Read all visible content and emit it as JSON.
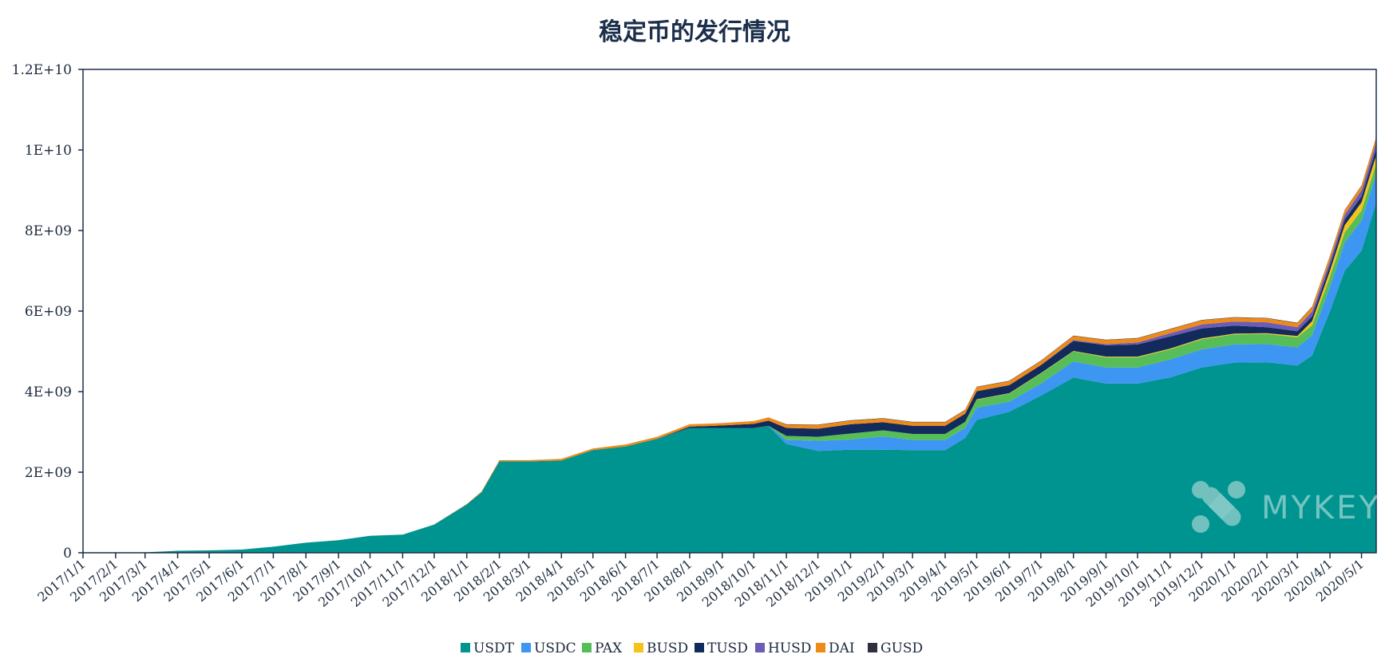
{
  "chart_data": {
    "type": "area",
    "stacked": true,
    "title": "稳定币的发行情况",
    "xlabel": "",
    "ylabel": "",
    "ylim": [
      0,
      12000000000
    ],
    "y_ticks": [
      "0",
      "2E+09",
      "4E+09",
      "6E+09",
      "8E+09",
      "1E+10",
      "1.2E+10"
    ],
    "x_ticks": [
      "2017/1/1",
      "2017/2/1",
      "2017/3/1",
      "2017/4/1",
      "2017/5/1",
      "2017/6/1",
      "2017/7/1",
      "2017/8/1",
      "2017/9/1",
      "2017/10/1",
      "2017/11/1",
      "2017/12/1",
      "2018/1/1",
      "2018/2/1",
      "2018/3/1",
      "2018/4/1",
      "2018/5/1",
      "2018/6/1",
      "2018/7/1",
      "2018/8/1",
      "2018/9/1",
      "2018/10/1",
      "2018/11/1",
      "2018/12/1",
      "2019/1/1",
      "2019/2/1",
      "2019/3/1",
      "2019/4/1",
      "2019/5/1",
      "2019/6/1",
      "2019/7/1",
      "2019/8/1",
      "2019/9/1",
      "2019/10/1",
      "2019/11/1",
      "2019/12/1",
      "2020/1/1",
      "2020/2/1",
      "2020/3/1",
      "2020/4/1",
      "2020/5/1"
    ],
    "x_range": [
      "2017/1/1",
      "2020/5/15"
    ],
    "legend_position": "bottom",
    "grid": false,
    "x": [
      "2017/1/1",
      "2017/2/1",
      "2017/3/1",
      "2017/4/1",
      "2017/5/1",
      "2017/6/1",
      "2017/7/1",
      "2017/8/1",
      "2017/9/1",
      "2017/10/1",
      "2017/11/1",
      "2017/12/1",
      "2018/1/1",
      "2018/1/15",
      "2018/2/1",
      "2018/3/1",
      "2018/4/1",
      "2018/5/1",
      "2018/6/1",
      "2018/7/1",
      "2018/8/1",
      "2018/9/1",
      "2018/10/1",
      "2018/10/15",
      "2018/11/1",
      "2018/12/1",
      "2019/1/1",
      "2019/2/1",
      "2019/3/1",
      "2019/4/1",
      "2019/4/20",
      "2019/5/1",
      "2019/6/1",
      "2019/7/1",
      "2019/8/1",
      "2019/9/1",
      "2019/10/1",
      "2019/11/1",
      "2019/12/1",
      "2020/1/1",
      "2020/2/1",
      "2020/3/1",
      "2020/3/15",
      "2020/4/1",
      "2020/4/15",
      "2020/5/1",
      "2020/5/15"
    ],
    "series": [
      {
        "name": "USDT",
        "color": "#009490",
        "values": [
          0,
          0,
          10000000,
          50000000,
          60000000,
          80000000,
          150000000,
          250000000,
          310000000,
          420000000,
          450000000,
          700000000,
          1200000000,
          1500000000,
          2270000000,
          2270000000,
          2290000000,
          2550000000,
          2640000000,
          2830000000,
          3100000000,
          3100000000,
          3100000000,
          3150000000,
          2700000000,
          2530000000,
          2560000000,
          2560000000,
          2550000000,
          2550000000,
          2850000000,
          3300000000,
          3500000000,
          3900000000,
          4350000000,
          4200000000,
          4200000000,
          4350000000,
          4600000000,
          4720000000,
          4730000000,
          4650000000,
          4900000000,
          6000000000,
          7000000000,
          7500000000,
          8700000000
        ]
      },
      {
        "name": "USDC",
        "color": "#3d96f2",
        "values": [
          0,
          0,
          0,
          0,
          0,
          0,
          0,
          0,
          0,
          0,
          0,
          0,
          0,
          0,
          0,
          0,
          0,
          0,
          0,
          0,
          0,
          0,
          0,
          0,
          100000000,
          250000000,
          250000000,
          330000000,
          250000000,
          250000000,
          250000000,
          300000000,
          250000000,
          300000000,
          400000000,
          400000000,
          400000000,
          450000000,
          450000000,
          450000000,
          450000000,
          450000000,
          500000000,
          600000000,
          700000000,
          750000000,
          700000000
        ]
      },
      {
        "name": "PAX",
        "color": "#56bd57",
        "values": [
          0,
          0,
          0,
          0,
          0,
          0,
          0,
          0,
          0,
          0,
          0,
          0,
          0,
          0,
          0,
          0,
          0,
          0,
          0,
          0,
          0,
          0,
          0,
          0,
          100000000,
          100000000,
          150000000,
          150000000,
          150000000,
          150000000,
          150000000,
          200000000,
          200000000,
          250000000,
          250000000,
          250000000,
          250000000,
          250000000,
          250000000,
          250000000,
          250000000,
          250000000,
          250000000,
          250000000,
          250000000,
          250000000,
          250000000
        ]
      },
      {
        "name": "BUSD",
        "color": "#f4c41c",
        "values": [
          0,
          0,
          0,
          0,
          0,
          0,
          0,
          0,
          0,
          0,
          0,
          0,
          0,
          0,
          0,
          0,
          0,
          0,
          0,
          0,
          0,
          0,
          0,
          0,
          0,
          0,
          0,
          0,
          0,
          0,
          0,
          10000000,
          10000000,
          10000000,
          10000000,
          20000000,
          20000000,
          20000000,
          20000000,
          20000000,
          20000000,
          30000000,
          100000000,
          150000000,
          180000000,
          200000000,
          220000000
        ]
      },
      {
        "name": "TUSD",
        "color": "#122a5c",
        "values": [
          0,
          0,
          0,
          0,
          0,
          0,
          0,
          0,
          0,
          0,
          0,
          0,
          0,
          0,
          0,
          0,
          0,
          0,
          0,
          0,
          30000000,
          60000000,
          100000000,
          130000000,
          200000000,
          200000000,
          230000000,
          200000000,
          200000000,
          200000000,
          200000000,
          200000000,
          200000000,
          200000000,
          250000000,
          280000000,
          300000000,
          300000000,
          250000000,
          200000000,
          150000000,
          120000000,
          120000000,
          130000000,
          140000000,
          150000000,
          160000000
        ]
      },
      {
        "name": "HUSD",
        "color": "#6b5cb5",
        "values": [
          0,
          0,
          0,
          0,
          0,
          0,
          0,
          0,
          0,
          0,
          0,
          0,
          0,
          0,
          0,
          0,
          0,
          0,
          0,
          0,
          0,
          0,
          0,
          0,
          0,
          0,
          0,
          0,
          0,
          0,
          0,
          0,
          0,
          0,
          20000000,
          30000000,
          50000000,
          80000000,
          100000000,
          100000000,
          120000000,
          100000000,
          120000000,
          120000000,
          120000000,
          150000000,
          160000000
        ]
      },
      {
        "name": "DAI",
        "color": "#f08a16",
        "values": [
          0,
          0,
          0,
          0,
          0,
          0,
          0,
          0,
          0,
          0,
          0,
          0,
          10000000,
          20000000,
          30000000,
          30000000,
          40000000,
          40000000,
          50000000,
          50000000,
          60000000,
          60000000,
          70000000,
          80000000,
          80000000,
          90000000,
          90000000,
          90000000,
          90000000,
          90000000,
          90000000,
          100000000,
          100000000,
          100000000,
          100000000,
          100000000,
          100000000,
          100000000,
          100000000,
          100000000,
          100000000,
          100000000,
          110000000,
          110000000,
          110000000,
          110000000,
          120000000
        ]
      },
      {
        "name": "GUSD",
        "color": "#2f2f3f",
        "values": [
          0,
          0,
          0,
          0,
          0,
          0,
          0,
          0,
          0,
          0,
          0,
          0,
          0,
          0,
          0,
          0,
          0,
          0,
          0,
          0,
          0,
          0,
          0,
          0,
          10000000,
          10000000,
          10000000,
          10000000,
          10000000,
          10000000,
          10000000,
          10000000,
          10000000,
          10000000,
          10000000,
          10000000,
          10000000,
          10000000,
          10000000,
          10000000,
          10000000,
          10000000,
          10000000,
          10000000,
          10000000,
          10000000,
          10000000
        ]
      }
    ]
  },
  "watermark": {
    "text": "MYKEY",
    "icon": "mykey-logo-icon",
    "color": "#d4ecea"
  },
  "colors": {
    "axis": "#1b2e4a",
    "title": "#1b2e4a",
    "text": "#1b2a3c"
  }
}
